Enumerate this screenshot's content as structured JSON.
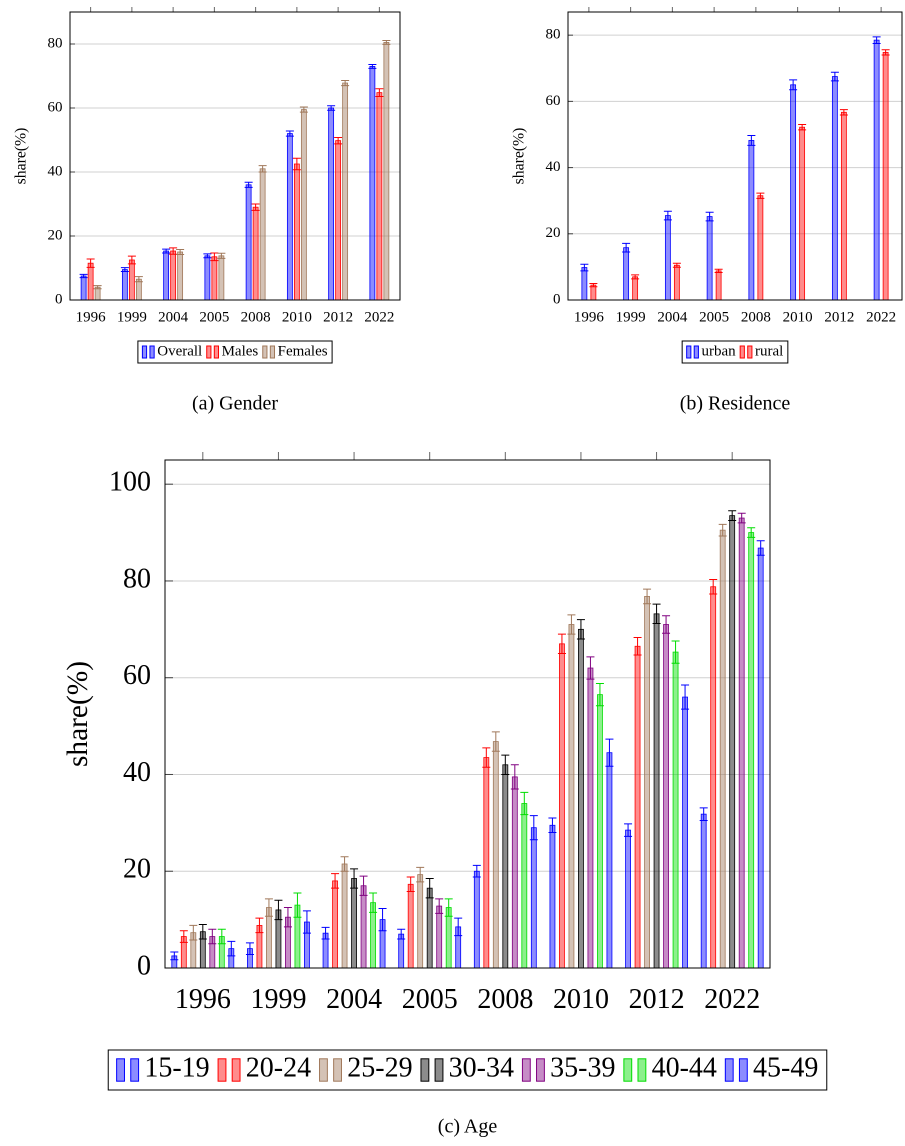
{
  "chart_data": [
    {
      "type": "bar",
      "caption": "(a) Gender",
      "y_label": "share(%)",
      "categories": [
        "1996",
        "1999",
        "2004",
        "2005",
        "2008",
        "2010",
        "2012",
        "2022"
      ],
      "series": [
        {
          "name": "Overall",
          "color": "#0000ff",
          "values": [
            7.5,
            9.5,
            15.3,
            13.8,
            36,
            52,
            60,
            73
          ],
          "errors": [
            0.5,
            0.6,
            0.6,
            0.6,
            0.8,
            0.8,
            0.7,
            0.6
          ]
        },
        {
          "name": "Males",
          "color": "#ff0000",
          "values": [
            11.5,
            12.5,
            15.3,
            13.5,
            29,
            42.5,
            49.8,
            64.8
          ],
          "errors": [
            1.3,
            1.2,
            1.0,
            1.2,
            1.0,
            1.8,
            1.0,
            1.2
          ]
        },
        {
          "name": "Females",
          "color": "#a0785a",
          "values": [
            4,
            6.5,
            15,
            13.8,
            41,
            59.5,
            67.8,
            80.5
          ],
          "errors": [
            0.5,
            0.8,
            0.8,
            0.8,
            1.0,
            0.8,
            0.8,
            0.6
          ]
        }
      ],
      "ylim": [
        0,
        90
      ],
      "yticks": [
        0,
        20,
        40,
        60,
        80
      ],
      "grid": true
    },
    {
      "type": "bar",
      "caption": "(b) Residence",
      "y_label": "share(%)",
      "categories": [
        "1996",
        "1999",
        "2004",
        "2005",
        "2008",
        "2010",
        "2012",
        "2022"
      ],
      "series": [
        {
          "name": "urban",
          "color": "#0000ff",
          "values": [
            9.8,
            15.8,
            25.5,
            25.2,
            48.2,
            65,
            67.5,
            78.5
          ],
          "errors": [
            1.0,
            1.3,
            1.3,
            1.3,
            1.5,
            1.5,
            1.3,
            1.0
          ]
        },
        {
          "name": "rural",
          "color": "#ff0000",
          "values": [
            4.5,
            7,
            10.5,
            8.8,
            31.5,
            52.2,
            56.7,
            74.8
          ],
          "errors": [
            0.5,
            0.6,
            0.6,
            0.5,
            0.8,
            0.8,
            0.8,
            0.8
          ]
        }
      ],
      "ylim": [
        0,
        87
      ],
      "yticks": [
        0,
        20,
        40,
        60,
        80
      ],
      "grid": true
    },
    {
      "type": "bar",
      "caption": "(c) Age",
      "y_label": "share(%)",
      "categories": [
        "1996",
        "1999",
        "2004",
        "2005",
        "2008",
        "2010",
        "2012",
        "2022"
      ],
      "series": [
        {
          "name": "15-19",
          "color": "#0000ff",
          "values": [
            2.5,
            4,
            7.2,
            7,
            20,
            29.5,
            28.5,
            31.8
          ],
          "errors": [
            0.8,
            1.2,
            1.2,
            1.0,
            1.2,
            1.5,
            1.3,
            1.3
          ]
        },
        {
          "name": "20-24",
          "color": "#ff0000",
          "values": [
            6.5,
            8.8,
            18,
            17.3,
            43.5,
            67,
            66.5,
            78.8
          ],
          "errors": [
            1.2,
            1.5,
            1.5,
            1.5,
            2.0,
            2.0,
            1.8,
            1.5
          ]
        },
        {
          "name": "25-29",
          "color": "#a0785a",
          "values": [
            7.3,
            12.5,
            21.5,
            19.3,
            46.8,
            71,
            76.8,
            90.5
          ],
          "errors": [
            1.5,
            1.8,
            1.5,
            1.5,
            2.0,
            2.0,
            1.5,
            1.2
          ]
        },
        {
          "name": "30-34",
          "color": "#000000",
          "values": [
            7.5,
            12,
            18.5,
            16.5,
            42,
            70,
            73.2,
            93.5
          ],
          "errors": [
            1.5,
            2.0,
            2.0,
            2.0,
            2.0,
            2.0,
            2.0,
            1.0
          ]
        },
        {
          "name": "35-39",
          "color": "#800080",
          "values": [
            6.5,
            10.5,
            17,
            12.8,
            39.5,
            62,
            71,
            93
          ],
          "errors": [
            1.5,
            2.0,
            2.0,
            1.5,
            2.5,
            2.3,
            1.8,
            1.0
          ]
        },
        {
          "name": "40-44",
          "color": "#00dd00",
          "values": [
            6.5,
            13,
            13.5,
            12.5,
            34,
            56.5,
            65.3,
            90
          ],
          "errors": [
            1.5,
            2.5,
            2.0,
            1.8,
            2.3,
            2.3,
            2.3,
            1.0
          ]
        },
        {
          "name": "45-49",
          "color": "#0000ff",
          "values": [
            4,
            9.5,
            10,
            8.5,
            29,
            44.5,
            56,
            86.8
          ],
          "errors": [
            1.5,
            2.3,
            2.3,
            1.8,
            2.5,
            2.8,
            2.5,
            1.5
          ]
        }
      ],
      "ylim": [
        0,
        105
      ],
      "yticks": [
        0,
        20,
        40,
        60,
        80,
        100
      ],
      "grid": true
    }
  ]
}
